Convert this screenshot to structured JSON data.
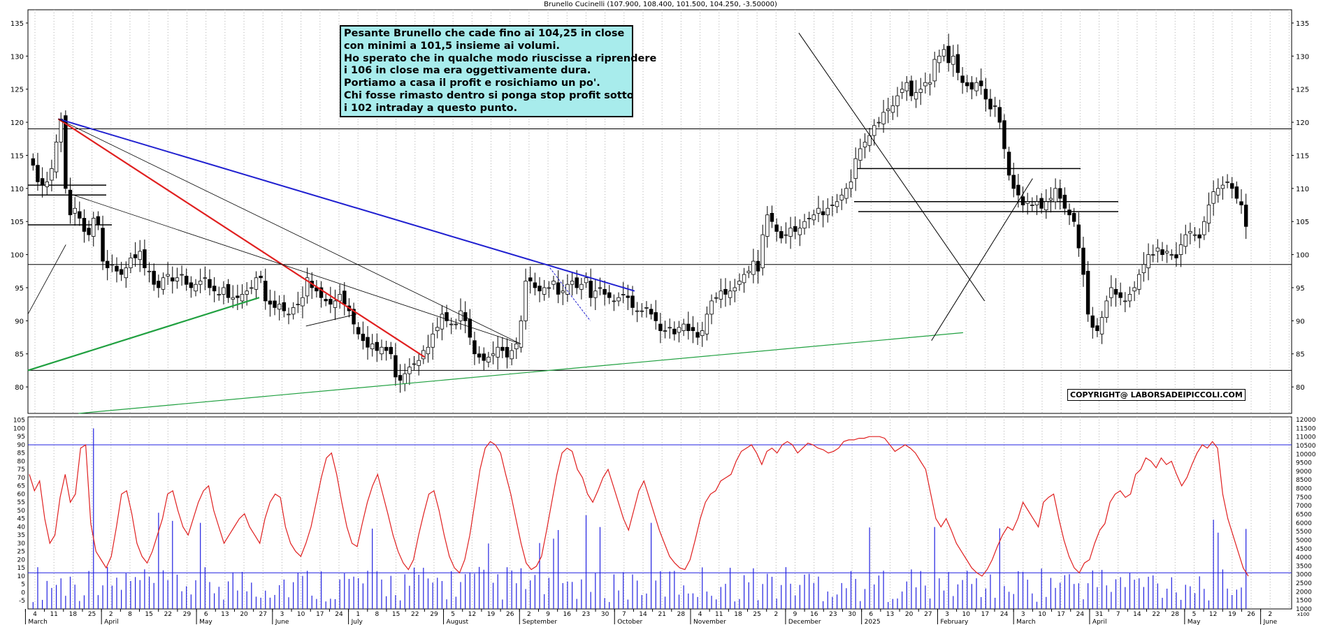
{
  "title": "Brunello Cucinelli (107.900, 108.400, 101.500, 104.250, -3.50000)",
  "note_lines": [
    "Pesante Brunello che cade fino ai 104,25 in close",
    "con minimi a 101,5 insieme ai volumi.",
    "Ho sperato che in qualche modo riuscisse a riprendere",
    "i 106 in close ma era oggettivamente dura.",
    "Portiamo a casa il profit e rosichiamo un po'.",
    "Chi fosse rimasto dentro si ponga stop profit sotto",
    "i 102 intraday a questo punto."
  ],
  "copyright": "COPYRIGHT@ LABORSADEIPICCOLI.COM",
  "colors": {
    "price_grid": "#b0b0b0",
    "blue_trend": "#2020d0",
    "red_trend": "#e02020",
    "green_trend": "#20a040",
    "oscillator": "#e02020",
    "volume": "#2020e0",
    "note_bg": "#a8ecec"
  },
  "chart_data": [
    {
      "type": "candlestick",
      "title": "Brunello Cucinelli (107.900, 108.400, 101.500, 104.250, -3.50000)",
      "ylim": [
        76,
        137
      ],
      "y_ticks": [
        80,
        85,
        90,
        95,
        100,
        105,
        110,
        115,
        120,
        125,
        130,
        135
      ],
      "grid": "vertical dotted",
      "horizontal_levels": [
        119,
        98.5,
        82.5,
        106.5,
        108,
        113,
        110.5,
        109,
        104.5
      ],
      "x_day_labels": [
        "4",
        "11",
        "18",
        "25",
        "2",
        "8",
        "15",
        "22",
        "29",
        "6",
        "13",
        "20",
        "27",
        "3",
        "10",
        "17",
        "24",
        "1",
        "8",
        "15",
        "22",
        "29",
        "5",
        "12",
        "19",
        "26",
        "2",
        "9",
        "16",
        "23",
        "30",
        "7",
        "14",
        "21",
        "28",
        "4",
        "11",
        "18",
        "25",
        "2",
        "9",
        "16",
        "23",
        "30",
        "6",
        "13",
        "20",
        "27",
        "3",
        "10",
        "17",
        "24",
        "3",
        "10",
        "17",
        "24",
        "31",
        "7",
        "14",
        "22",
        "28",
        "5",
        "12",
        "19",
        "26",
        "2"
      ],
      "x_month_labels": [
        "March",
        "April",
        "May",
        "June",
        "July",
        "August",
        "September",
        "October",
        "November",
        "December",
        "2025",
        "February",
        "March",
        "April",
        "May",
        "June"
      ],
      "price_path": [
        113.5,
        111,
        110.5,
        111,
        113,
        117,
        120.5,
        110,
        106,
        107,
        105.5,
        103.5,
        103,
        105.5,
        104.5,
        99,
        98,
        98.5,
        97.5,
        97,
        98,
        99.5,
        99.5,
        100.5,
        98,
        97.5,
        95.5,
        95,
        96.5,
        97,
        96,
        96.5,
        97,
        95.5,
        95,
        95.5,
        96,
        96.5,
        95,
        94.5,
        94,
        95,
        93.5,
        93.5,
        93.5,
        94,
        94.5,
        95,
        96.5,
        96.5,
        93,
        92.5,
        92,
        92.5,
        91.5,
        91,
        92,
        92.5,
        93.5,
        96.5,
        95,
        94.5,
        93.5,
        93,
        92.5,
        93,
        94,
        92.5,
        91.5,
        89.5,
        88,
        87,
        86,
        86.5,
        85.5,
        86,
        85.5,
        85,
        81.5,
        81,
        82,
        83,
        83.5,
        84,
        85.5,
        86,
        88,
        89,
        91,
        90,
        89.5,
        89.5,
        91.5,
        90,
        87.5,
        85,
        84.5,
        84,
        84.5,
        85,
        86,
        85.5,
        84.5,
        85.5,
        86.5,
        90,
        96,
        96,
        95,
        94.5,
        95,
        95,
        96,
        94,
        94.5,
        95.5,
        96,
        95,
        95.5,
        96.5,
        93.5,
        94.5,
        95,
        94,
        93.5,
        93,
        93.5,
        94,
        93.5,
        92,
        91.5,
        91.5,
        92,
        91,
        90,
        88.5,
        88.5,
        89,
        88,
        89,
        89.5,
        88.5,
        88.5,
        87.5,
        88.5,
        91,
        93,
        93.5,
        94.5,
        94,
        94.5,
        95,
        96,
        97,
        97.5,
        99,
        97.5,
        103,
        106,
        105,
        103.5,
        102.5,
        103,
        104,
        103.5,
        104,
        105,
        105.5,
        106,
        107,
        106,
        107,
        107.5,
        108,
        109,
        110,
        111,
        114.5,
        116,
        117,
        118,
        119.5,
        120,
        121.5,
        122,
        122.5,
        124,
        125,
        126,
        124,
        124.5,
        125,
        126,
        126,
        129.5,
        130,
        131,
        129,
        130,
        127.5,
        126,
        125.5,
        125,
        126,
        125.5,
        123.5,
        122,
        122.5,
        120,
        116,
        112,
        110,
        109,
        107.5,
        108,
        107.5,
        108,
        107,
        108,
        108.5,
        110,
        108.5,
        107,
        106,
        105,
        101,
        97,
        91,
        89,
        88.5,
        90.5,
        93,
        95,
        94,
        93.5,
        93,
        94,
        95,
        97,
        98.5,
        100,
        100,
        101,
        100,
        100.5,
        100,
        99.5,
        101.5,
        103,
        103.5,
        103,
        102.5,
        105,
        107.5,
        109.5,
        110,
        110.5,
        111,
        110,
        108.5,
        107.5,
        104.25
      ]
    },
    {
      "type": "line+bar",
      "title": "",
      "left_ylim": [
        -10,
        107
      ],
      "left_ticks": [
        -5,
        0,
        5,
        10,
        15,
        20,
        25,
        30,
        35,
        40,
        45,
        50,
        55,
        60,
        65,
        70,
        75,
        80,
        85,
        90,
        95,
        100,
        105
      ],
      "right_ylim": [
        1000,
        12000
      ],
      "right_ticks": [
        1000,
        1500,
        2000,
        2500,
        3000,
        3500,
        4000,
        4500,
        5000,
        5500,
        6000,
        6500,
        7000,
        7500,
        8000,
        8500,
        9000,
        9500,
        10000,
        10500,
        11000,
        11500,
        12000
      ],
      "right_axis_caption": "x100",
      "horizontal_levels": [
        90,
        12
      ],
      "oscillator_path": [
        72,
        62,
        68,
        45,
        30,
        35,
        58,
        72,
        55,
        60,
        88,
        90,
        42,
        25,
        20,
        15,
        22,
        40,
        60,
        62,
        48,
        30,
        22,
        18,
        25,
        35,
        45,
        60,
        62,
        50,
        40,
        35,
        45,
        55,
        62,
        65,
        50,
        40,
        30,
        35,
        40,
        45,
        48,
        40,
        35,
        30,
        45,
        55,
        60,
        58,
        40,
        30,
        25,
        22,
        30,
        40,
        55,
        70,
        82,
        85,
        72,
        55,
        40,
        30,
        28,
        42,
        55,
        65,
        72,
        60,
        48,
        35,
        25,
        18,
        14,
        20,
        35,
        48,
        60,
        62,
        50,
        35,
        22,
        15,
        12,
        20,
        35,
        55,
        75,
        88,
        92,
        90,
        85,
        72,
        60,
        45,
        30,
        18,
        14,
        16,
        22,
        38,
        55,
        72,
        85,
        88,
        86,
        75,
        70,
        60,
        55,
        62,
        70,
        75,
        65,
        55,
        45,
        38,
        50,
        62,
        68,
        58,
        48,
        38,
        30,
        22,
        18,
        15,
        14,
        20,
        32,
        45,
        55,
        60,
        62,
        68,
        70,
        72,
        80,
        86,
        88,
        90,
        85,
        78,
        86,
        88,
        85,
        90,
        92,
        90,
        85,
        88,
        91,
        90,
        88,
        87,
        85,
        86,
        88,
        92,
        93,
        93,
        94,
        94,
        95,
        95,
        95,
        94,
        90,
        86,
        88,
        90,
        88,
        85,
        80,
        75,
        60,
        45,
        40,
        45,
        38,
        30,
        25,
        20,
        15,
        12,
        10,
        14,
        20,
        28,
        35,
        40,
        38,
        45,
        55,
        50,
        45,
        40,
        55,
        58,
        60,
        45,
        32,
        22,
        15,
        12,
        18,
        20,
        30,
        38,
        42,
        55,
        60,
        62,
        58,
        60,
        72,
        75,
        82,
        80,
        76,
        82,
        78,
        80,
        72,
        65,
        70,
        78,
        85,
        90,
        88,
        92,
        88,
        60,
        45,
        35,
        25,
        15,
        10
      ]
    }
  ]
}
